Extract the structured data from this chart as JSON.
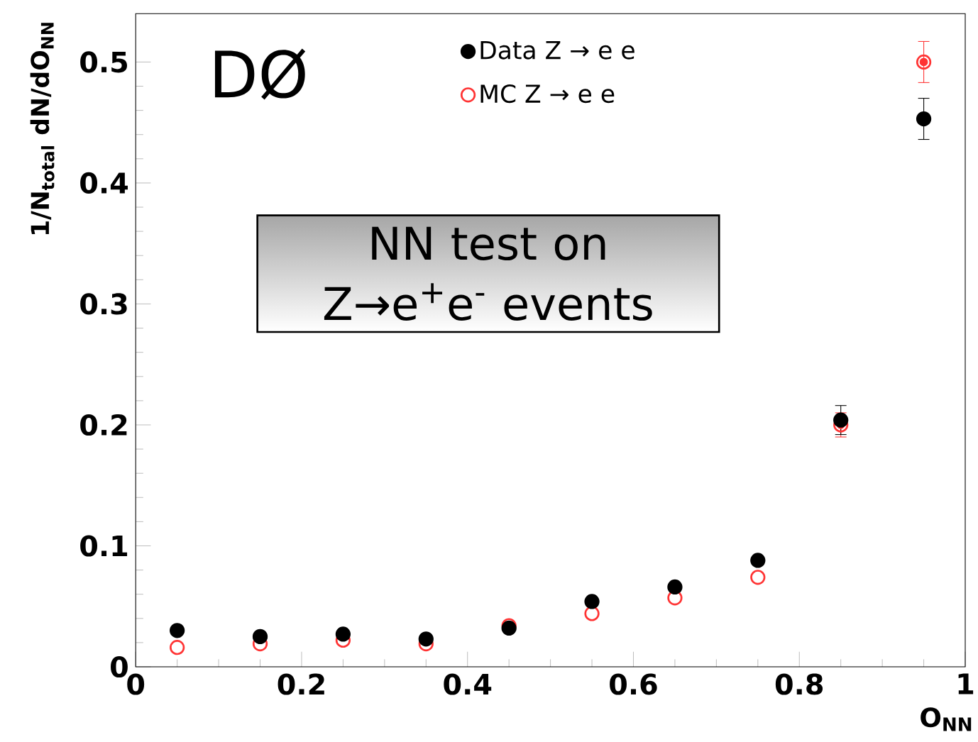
{
  "chart_data": {
    "type": "scatter",
    "xlabel": "O$_{NN}$",
    "ylabel": "1/N$_{total}$ dN/dO$_{NN}$",
    "x": [
      0.05,
      0.15,
      0.25,
      0.35,
      0.45,
      0.55,
      0.65,
      0.75,
      0.85,
      0.95
    ],
    "series": [
      {
        "name": "Data Z → e e",
        "color": "#000000",
        "values": [
          0.03,
          0.025,
          0.027,
          0.023,
          0.032,
          0.054,
          0.066,
          0.088,
          0.204,
          0.453
        ],
        "errors": [
          null,
          null,
          null,
          null,
          null,
          null,
          null,
          null,
          0.012,
          0.017
        ]
      },
      {
        "name": "MC Z → e e",
        "color": "#ff3333",
        "values": [
          0.016,
          0.019,
          0.022,
          0.019,
          0.034,
          0.044,
          0.057,
          0.074,
          0.2,
          0.5
        ],
        "errors": [
          null,
          null,
          null,
          null,
          null,
          null,
          null,
          null,
          0.01,
          0.017
        ]
      }
    ],
    "xlim": [
      0,
      1
    ],
    "ylim": [
      0,
      0.54
    ],
    "xticks": [
      0,
      0.2,
      0.4,
      0.6,
      0.8,
      1
    ],
    "yticks": [
      0,
      0.1,
      0.2,
      0.3,
      0.4,
      0.5
    ],
    "marker": "circle",
    "legend": "top",
    "grid": false,
    "annotations": [
      "DØ",
      "NN test on Z→e$^{+}$e$^{-}$ events"
    ]
  }
}
